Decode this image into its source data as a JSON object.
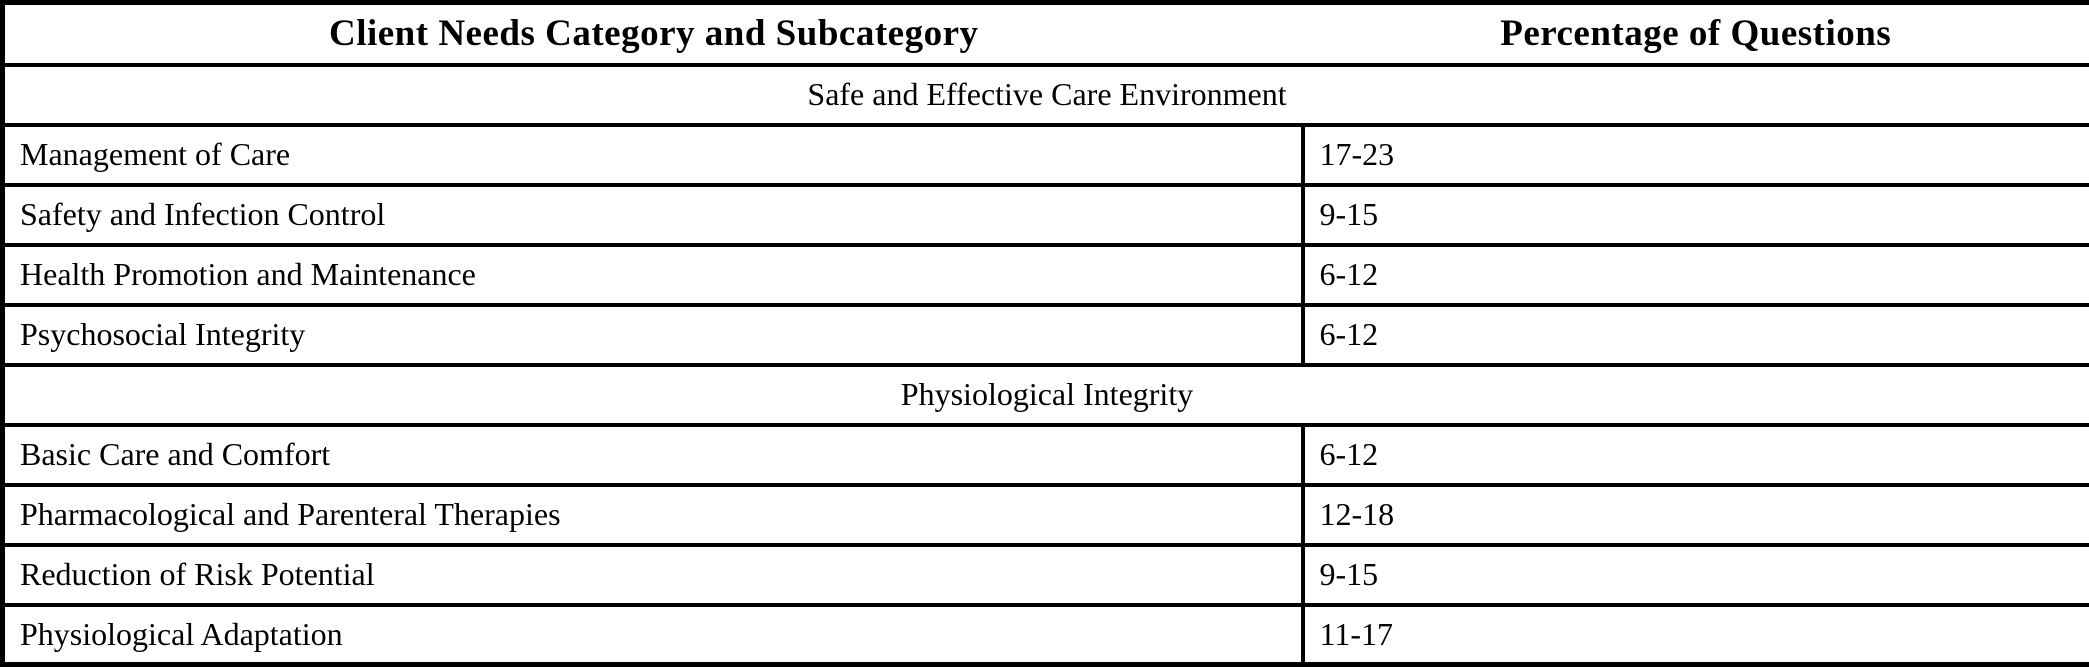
{
  "page": {
    "background": "#ffffff",
    "text_color": "#000000",
    "border_color": "#000000"
  },
  "table": {
    "headers": {
      "category": "Client Needs Category and Subcategory",
      "percentage": "Percentage of Questions"
    },
    "sections": [
      {
        "title": "Safe and Effective Care Environment",
        "rows": [
          {
            "category": "Management of Care",
            "percentage": "17-23"
          },
          {
            "category": "Safety and Infection Control",
            "percentage": "9-15"
          },
          {
            "category": "Health Promotion and Maintenance",
            "percentage": "6-12"
          },
          {
            "category": "Psychosocial Integrity",
            "percentage": "6-12"
          }
        ]
      },
      {
        "title": "Physiological Integrity",
        "rows": [
          {
            "category": "Basic Care and Comfort",
            "percentage": "6-12"
          },
          {
            "category": "Pharmacological and Parenteral Therapies",
            "percentage": "12-18"
          },
          {
            "category": "Reduction of Risk Potential",
            "percentage": "9-15"
          },
          {
            "category": "Physiological Adaptation",
            "percentage": "11-17"
          }
        ]
      }
    ]
  }
}
